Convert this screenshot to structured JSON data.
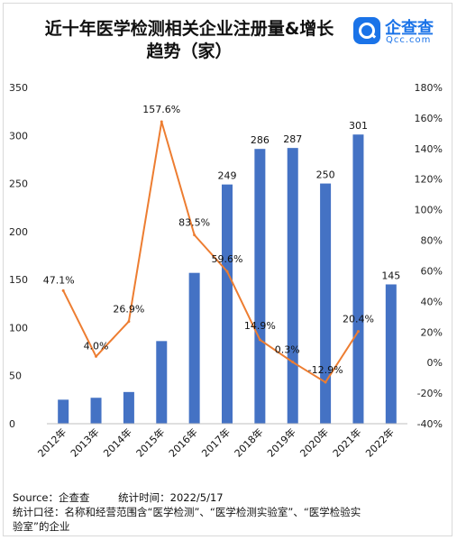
{
  "header": {
    "title_line1": "近十年医学检测相关企业注册量&增长",
    "title_line2": "趋势（家）"
  },
  "logo": {
    "name": "企查查",
    "sub": "Qcc.com"
  },
  "footer": {
    "source": "Source：企查查",
    "stat_time": "统计时间：2022/5/17",
    "note_line1": "统计口径：名称和经营范围含“医学检测”、“医学检测实验室”、“医学检验实",
    "note_line2": "验室”的企业"
  },
  "chart_data": {
    "type": "bar",
    "categories": [
      "2012年",
      "2013年",
      "2014年",
      "2015年",
      "2016年",
      "2017年",
      "2018年",
      "2019年",
      "2020年",
      "2021年",
      "2022年"
    ],
    "series": [
      {
        "type": "bar",
        "values": [
          25,
          27,
          33,
          86,
          157,
          249,
          286,
          287,
          250,
          301,
          145
        ],
        "color": "#4472c4"
      },
      {
        "type": "line",
        "axis": "right",
        "values": [
          47.1,
          4.0,
          26.9,
          157.6,
          83.5,
          59.6,
          14.9,
          0.3,
          -12.9,
          20.4,
          null
        ],
        "color": "#ed7d31"
      }
    ],
    "bar_labels": {
      "5": "249",
      "6": "286",
      "7": "287",
      "8": "250",
      "9": "301",
      "10": "145"
    },
    "line_labels": {
      "0": "47.1%",
      "1": "4.0%",
      "2": "26.9%",
      "3": "157.6%",
      "4": "83.5%",
      "5": "59.6%",
      "6": "14.9%",
      "7": "0.3%",
      "8": "-12.9%",
      "9": "20.4%"
    },
    "left_axis": {
      "min": 0,
      "max": 350,
      "ticks": [
        "0",
        "50",
        "100",
        "150",
        "200",
        "250",
        "300",
        "350"
      ]
    },
    "right_axis": {
      "min": -40,
      "max": 180,
      "ticks": [
        "-40%",
        "-20%",
        "0%",
        "20%",
        "40%",
        "60%",
        "80%",
        "100%",
        "120%",
        "140%",
        "160%",
        "180%"
      ]
    },
    "grid": false
  }
}
